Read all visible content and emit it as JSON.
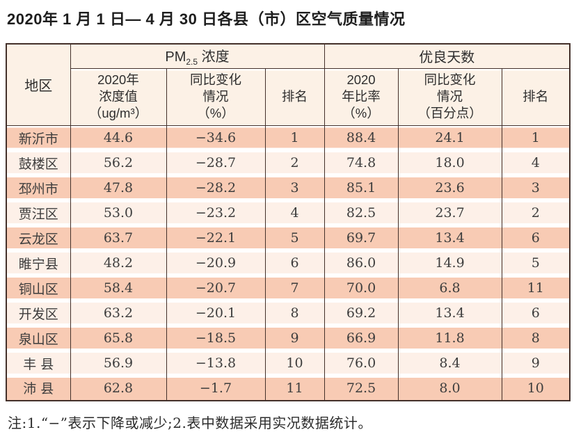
{
  "page_title": "2020年 1 月 1 日— 4 月 30 日各县（市）区空气质量情况",
  "colors": {
    "border": "#43302a",
    "row-odd": "#f8cbb4",
    "row-even": "#fdf0e8",
    "header-bg": "#fcf1e6",
    "text": "#3d3d3d",
    "title": "#1d1d1d"
  },
  "table": {
    "region_header": "地区",
    "pm25_header": {
      "prefix": "PM",
      "sub": "2.5",
      "suffix": "浓度"
    },
    "good_days_header": "优良天数",
    "sub_headers": {
      "pm25_value": "2020年\n浓度值\n（ug/m³）",
      "pm25_change": "同比变化\n情况\n（%）",
      "pm25_rank": "排名",
      "good_rate": "2020\n年比率\n（%）",
      "good_change": "同比变化\n情况\n（百分点）",
      "good_rank": "排名"
    },
    "rows": [
      {
        "region": "新沂市",
        "pm25_value": "44.6",
        "pm25_change": "−34.6",
        "pm25_rank": "1",
        "good_rate": "88.4",
        "good_change": "24.1",
        "good_rank": "1"
      },
      {
        "region": "鼓楼区",
        "pm25_value": "56.2",
        "pm25_change": "−28.7",
        "pm25_rank": "2",
        "good_rate": "74.8",
        "good_change": "18.0",
        "good_rank": "4"
      },
      {
        "region": "邳州市",
        "pm25_value": "47.8",
        "pm25_change": "−28.2",
        "pm25_rank": "3",
        "good_rate": "85.1",
        "good_change": "23.6",
        "good_rank": "3"
      },
      {
        "region": "贾汪区",
        "pm25_value": "53.0",
        "pm25_change": "−23.2",
        "pm25_rank": "4",
        "good_rate": "82.5",
        "good_change": "23.7",
        "good_rank": "2"
      },
      {
        "region": "云龙区",
        "pm25_value": "63.7",
        "pm25_change": "−22.1",
        "pm25_rank": "5",
        "good_rate": "69.7",
        "good_change": "13.4",
        "good_rank": "6"
      },
      {
        "region": "睢宁县",
        "pm25_value": "48.2",
        "pm25_change": "−20.9",
        "pm25_rank": "6",
        "good_rate": "86.0",
        "good_change": "14.9",
        "good_rank": "5"
      },
      {
        "region": "铜山区",
        "pm25_value": "58.4",
        "pm25_change": "−20.7",
        "pm25_rank": "7",
        "good_rate": "70.0",
        "good_change": "6.8",
        "good_rank": "11"
      },
      {
        "region": "开发区",
        "pm25_value": "63.2",
        "pm25_change": "−20.1",
        "pm25_rank": "8",
        "good_rate": "69.2",
        "good_change": "13.4",
        "good_rank": "6"
      },
      {
        "region": "泉山区",
        "pm25_value": "65.8",
        "pm25_change": "−18.5",
        "pm25_rank": "9",
        "good_rate": "66.9",
        "good_change": "11.8",
        "good_rank": "8"
      },
      {
        "region": "丰 县",
        "pm25_value": "56.9",
        "pm25_change": "−13.8",
        "pm25_rank": "10",
        "good_rate": "76.0",
        "good_change": "8.4",
        "good_rank": "9"
      },
      {
        "region": "沛 县",
        "pm25_value": "62.8",
        "pm25_change": "−1.7",
        "pm25_rank": "11",
        "good_rate": "72.5",
        "good_change": "8.0",
        "good_rank": "10"
      }
    ]
  },
  "note": "注:1.“−”表示下降或减少;2.表中数据采用实况数据统计。"
}
